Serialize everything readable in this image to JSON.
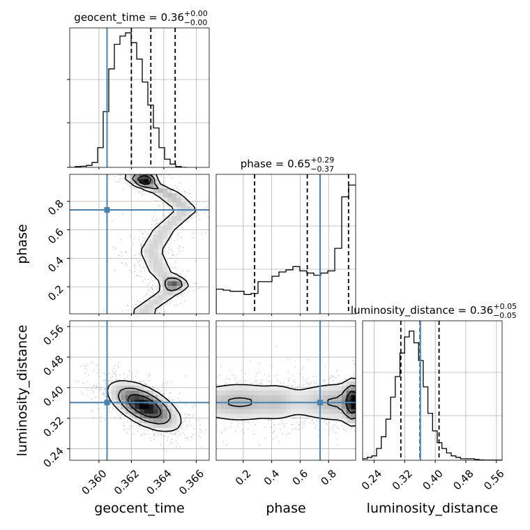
{
  "colors": {
    "truth": "#4682b4",
    "hist": "#000000",
    "grid": "#b0b0b0",
    "scatter": "#9a9a9a",
    "density": "#000000"
  },
  "chart_data": {
    "type": "corner",
    "parameters": [
      {
        "name": "geocent_time",
        "title": "geocent_time = 0.36",
        "title_sup": "+0.00",
        "title_sub": "−0.00",
        "range": [
          0.3582,
          0.3668
        ],
        "ticks": [
          0.36,
          0.362,
          0.364,
          0.366
        ],
        "tick_labels": [
          "0.360",
          "0.362",
          "0.364",
          "0.366"
        ],
        "truth": 0.3605,
        "quantiles": [
          0.362,
          0.3632,
          0.3647
        ],
        "hist_edges_start": 0.3582,
        "hist_bin_width": 0.000344,
        "hist_values": [
          0,
          0.5,
          0.7,
          1.2,
          3,
          12,
          34,
          60,
          75,
          80,
          82,
          76,
          66,
          52,
          38,
          24,
          12,
          5,
          2,
          0.5,
          0
        ],
        "hist_ymax": 85
      },
      {
        "name": "phase",
        "title": "phase = 0.65",
        "title_sup": "+0.29",
        "title_sub": "−0.37",
        "range": [
          0.01,
          0.99
        ],
        "ticks": [
          0.2,
          0.4,
          0.6,
          0.8
        ],
        "tick_labels": [
          "0.2",
          "0.4",
          "0.6",
          "0.8"
        ],
        "truth": 0.74,
        "quantiles": [
          0.28,
          0.65,
          0.94
        ],
        "hist_edges_start": 0.01,
        "hist_bin_width": 0.049,
        "hist_values": [
          1.15,
          1.1,
          1.05,
          1.05,
          0.9,
          0.95,
          1.5,
          1.5,
          1.75,
          1.95,
          2.05,
          2.2,
          2.0,
          1.9,
          1.8,
          1.9,
          2.0,
          3.05,
          5.45,
          6.0
        ],
        "hist_ymax": 6.5
      },
      {
        "name": "luminosity_distance",
        "title": "luminosity_distance = 0.36",
        "title_sup": "+0.05",
        "title_sub": "−0.05",
        "range": [
          0.21,
          0.575
        ],
        "ticks": [
          0.24,
          0.32,
          0.4,
          0.48,
          0.56
        ],
        "tick_labels": [
          "0.24",
          "0.32",
          "0.40",
          "0.48",
          "0.56"
        ],
        "truth": 0.361,
        "quantiles": [
          0.31,
          0.36,
          0.41
        ],
        "hist_edges_start": 0.21,
        "hist_bin_width": 0.0122,
        "hist_values": [
          1,
          2,
          3,
          8,
          16,
          28,
          43,
          57,
          73,
          84,
          88,
          80,
          68,
          50,
          32,
          20,
          12,
          8,
          5,
          3,
          2,
          1,
          1,
          1,
          0.5,
          0.2,
          0.1,
          0.1,
          0.1,
          0.1
        ],
        "hist_ymax": 95
      }
    ],
    "axis_labels": [
      "geocent_time",
      "phase",
      "luminosity_distance"
    ],
    "joint_distributions": [
      {
        "x": "geocent_time",
        "y": "phase",
        "ridge": [
          [
            0.95,
            0.3624
          ],
          [
            0.85,
            0.3643
          ],
          [
            0.74,
            0.3654
          ],
          [
            0.6,
            0.364
          ],
          [
            0.45,
            0.3632
          ],
          [
            0.3,
            0.3638
          ],
          [
            0.2,
            0.3648
          ],
          [
            0.12,
            0.3638
          ],
          [
            0.04,
            0.3628
          ]
        ],
        "hot_spots": [
          [
            0.3628,
            0.95
          ],
          [
            0.363,
            0.96
          ],
          [
            0.3648,
            0.23
          ],
          [
            0.3644,
            0.21
          ]
        ]
      },
      {
        "x": "geocent_time",
        "y": "luminosity_distance",
        "center": [
          0.3628,
          0.352
        ],
        "sigma": [
          0.0011,
          0.032
        ],
        "correlation": -0.6
      },
      {
        "x": "phase",
        "y": "luminosity_distance",
        "center_y": 0.362,
        "sigma_y": 0.03,
        "dense_edge_phase": 0.97
      }
    ]
  }
}
